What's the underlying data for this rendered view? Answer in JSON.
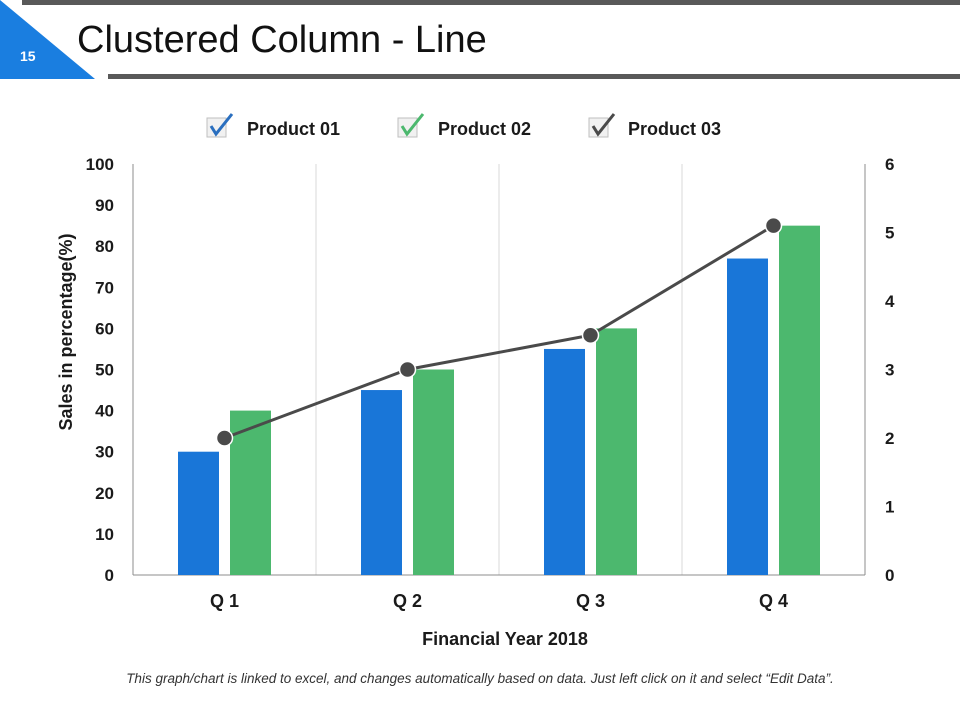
{
  "slide": {
    "number": "15",
    "title": "Clustered Column - Line",
    "footnote": "This graph/chart is linked to excel, and changes automatically based on data. Just left click on it and select “Edit Data”."
  },
  "colors": {
    "accent": "#1a7ee0",
    "product01": "#1976d8",
    "product02": "#4cb86e",
    "product03": "#4a4a4a",
    "title_bar": "#595959",
    "check": "#2a6fbf"
  },
  "chart_data": {
    "type": "bar+line",
    "categories": [
      "Q 1",
      "Q 2",
      "Q 3",
      "Q 4"
    ],
    "series": [
      {
        "name": "Product 01",
        "type": "bar",
        "axis": "left",
        "values": [
          30,
          45,
          55,
          77
        ]
      },
      {
        "name": "Product 02",
        "type": "bar",
        "axis": "left",
        "values": [
          40,
          50,
          60,
          85
        ]
      },
      {
        "name": "Product 03",
        "type": "line",
        "axis": "right",
        "values": [
          2,
          3,
          3.5,
          5.1
        ]
      }
    ],
    "xlabel": "Financial Year 2018",
    "ylabel": "Sales in percentage(%)",
    "ylim": [
      0,
      100
    ],
    "y_ticks": [
      0,
      10,
      20,
      30,
      40,
      50,
      60,
      70,
      80,
      90,
      100
    ],
    "y2lim": [
      0,
      6
    ],
    "y2_ticks": [
      0,
      1,
      2,
      3,
      4,
      5,
      6
    ],
    "legend_position": "top",
    "grid": "vertical"
  }
}
